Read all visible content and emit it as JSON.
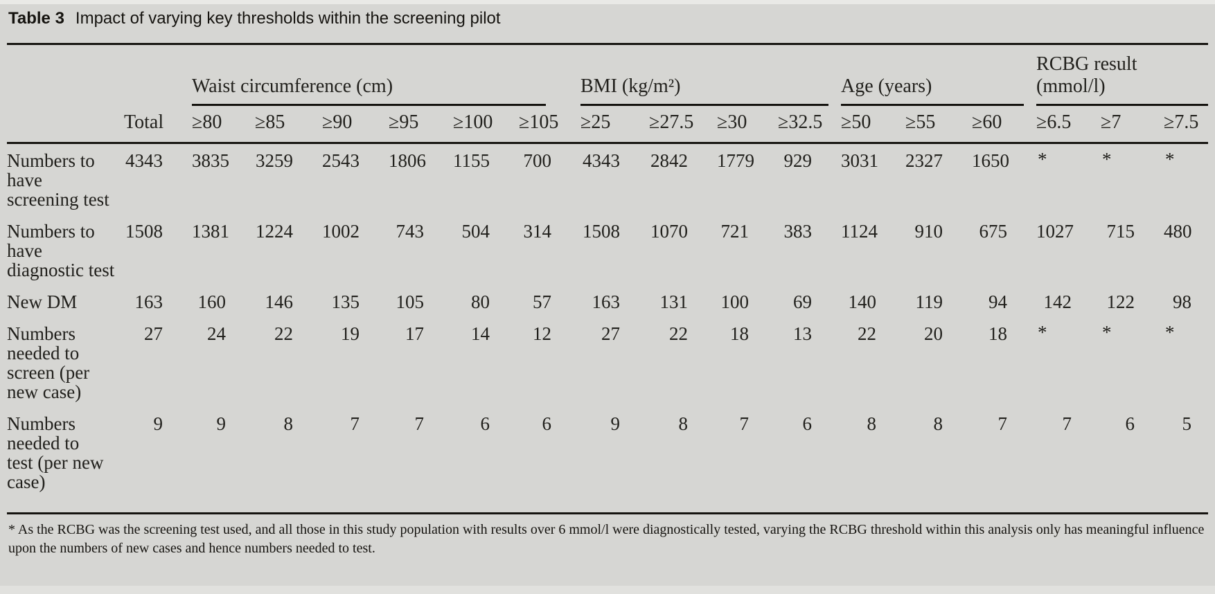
{
  "title": {
    "label": "Table 3",
    "text": "Impact of varying key thresholds within the screening pilot"
  },
  "table": {
    "column_groups": [
      {
        "label": "Waist circumference (cm)",
        "span": 6
      },
      {
        "label": "BMI (kg/m²)",
        "span": 4
      },
      {
        "label": "Age (years)",
        "span": 3
      },
      {
        "label": "RCBG result (mmol/l)",
        "span": 3
      }
    ],
    "columns": [
      "",
      "Total",
      "≥80",
      "≥85",
      "≥90",
      "≥95",
      "≥100",
      "≥105",
      "≥25",
      "≥27.5",
      "≥30",
      "≥32.5",
      "≥50",
      "≥55",
      "≥60",
      "≥6.5",
      "≥7",
      "≥7.5"
    ],
    "rows": [
      {
        "label": "Numbers to\nhave\nscreening test",
        "values": [
          "4343",
          "3835",
          "3259",
          "2543",
          "1806",
          "1155",
          "700",
          "4343",
          "2842",
          "1779",
          "929",
          "3031",
          "2327",
          "1650",
          "*",
          "*",
          "*"
        ]
      },
      {
        "label": "Numbers to\nhave\ndiagnostic test",
        "values": [
          "1508",
          "1381",
          "1224",
          "1002",
          "743",
          "504",
          "314",
          "1508",
          "1070",
          "721",
          "383",
          "1124",
          "910",
          "675",
          "1027",
          "715",
          "480"
        ]
      },
      {
        "label": "New DM",
        "values": [
          "163",
          "160",
          "146",
          "135",
          "105",
          "80",
          "57",
          "163",
          "131",
          "100",
          "69",
          "140",
          "119",
          "94",
          "142",
          "122",
          "98"
        ]
      },
      {
        "label": "Numbers\nneeded to\nscreen (per\nnew case)",
        "values": [
          "27",
          "24",
          "22",
          "19",
          "17",
          "14",
          "12",
          "27",
          "22",
          "18",
          "13",
          "22",
          "20",
          "18",
          "*",
          "*",
          "*"
        ]
      },
      {
        "label": "Numbers\nneeded to\ntest (per new\ncase)",
        "values": [
          "9",
          "9",
          "8",
          "7",
          "7",
          "6",
          "6",
          "9",
          "8",
          "7",
          "6",
          "8",
          "8",
          "7",
          "7",
          "6",
          "5"
        ]
      }
    ]
  },
  "footnote": "* As the RCBG was the screening test used, and all those in this study population with results over 6 mmol/l were diagnostically tested, varying the RCBG threshold within this analysis only has meaningful influence upon the numbers of new cases and hence numbers needed to test.",
  "colors": {
    "background": "#d6d6d3",
    "text": "#21201c",
    "rule": "#15130f"
  }
}
